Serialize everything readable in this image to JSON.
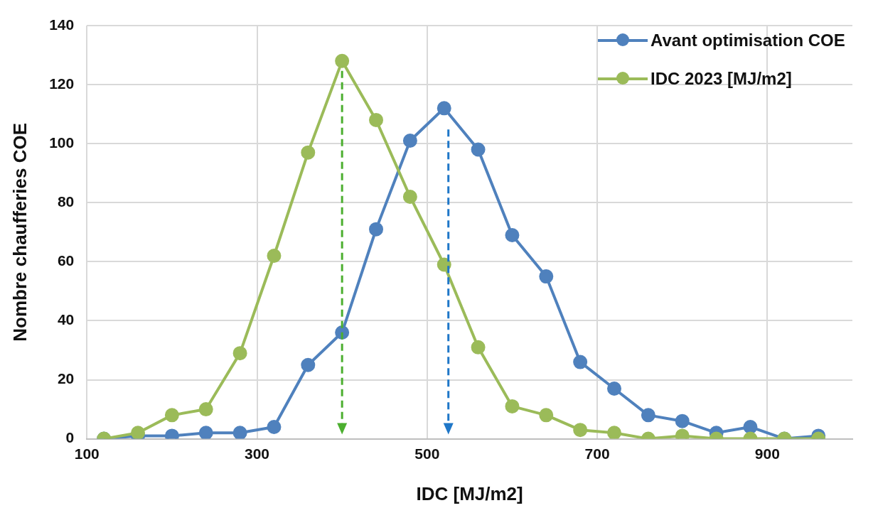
{
  "chart_data": {
    "type": "line",
    "xlabel": "IDC [MJ/m2]",
    "ylabel": "Nombre chaufferies COE",
    "x": [
      120,
      160,
      200,
      240,
      280,
      320,
      360,
      400,
      440,
      480,
      520,
      560,
      600,
      640,
      680,
      720,
      760,
      800,
      840,
      880,
      920,
      960
    ],
    "series": [
      {
        "name": "Avant optimisation COE",
        "color": "#4f81bd",
        "values": [
          0,
          1,
          1,
          2,
          2,
          4,
          25,
          36,
          71,
          101,
          112,
          98,
          69,
          55,
          26,
          17,
          8,
          6,
          2,
          4,
          0,
          1
        ]
      },
      {
        "name": "IDC 2023 [MJ/m2]",
        "color": "#9bbb59",
        "values": [
          0,
          2,
          8,
          10,
          29,
          62,
          97,
          128,
          108,
          82,
          59,
          31,
          11,
          8,
          3,
          2,
          0,
          1,
          0,
          0,
          0,
          0
        ]
      }
    ],
    "ref_lines": [
      {
        "axis": "x",
        "value": 400,
        "color": "#4caf2f",
        "line_style": "dashed"
      },
      {
        "axis": "x",
        "value": 525,
        "color": "#1f77c8",
        "line_style": "dashed"
      }
    ],
    "xlim": [
      100,
      1000
    ],
    "xticks": [
      100,
      300,
      500,
      700,
      900
    ],
    "ylim": [
      0,
      140
    ],
    "yticks": [
      0,
      20,
      40,
      60,
      80,
      100,
      120,
      140
    ],
    "grid": true,
    "legend": "top right",
    "marker": "circle",
    "line_style": "solid"
  }
}
